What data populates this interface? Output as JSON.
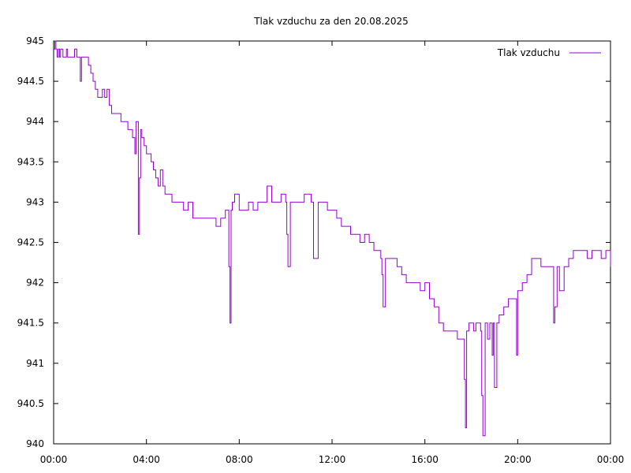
{
  "chart_data": {
    "type": "line",
    "title": "Tlak vzduchu za den 20.08.2025",
    "xlabel": "",
    "ylabel": "",
    "xlim": [
      0,
      24
    ],
    "ylim": [
      940,
      945
    ],
    "x_ticks": [
      {
        "value": 0,
        "label": "00:00"
      },
      {
        "value": 4,
        "label": "04:00"
      },
      {
        "value": 8,
        "label": "08:00"
      },
      {
        "value": 12,
        "label": "12:00"
      },
      {
        "value": 16,
        "label": "16:00"
      },
      {
        "value": 20,
        "label": "20:00"
      },
      {
        "value": 24,
        "label": "00:00"
      }
    ],
    "y_ticks": [
      {
        "value": 940,
        "label": "940"
      },
      {
        "value": 940.5,
        "label": "940.5"
      },
      {
        "value": 941,
        "label": "941"
      },
      {
        "value": 941.5,
        "label": "941.5"
      },
      {
        "value": 942,
        "label": "942"
      },
      {
        "value": 942.5,
        "label": "942.5"
      },
      {
        "value": 943,
        "label": "943"
      },
      {
        "value": 943.5,
        "label": "943.5"
      },
      {
        "value": 944,
        "label": "944"
      },
      {
        "value": 944.5,
        "label": "944.5"
      },
      {
        "value": 945,
        "label": "945"
      }
    ],
    "grid": false,
    "legend_position": "top-right",
    "series": [
      {
        "name": "Tlak vzduchu",
        "color": "#9400d3",
        "x": [
          0.0,
          0.05,
          0.1,
          0.15,
          0.2,
          0.25,
          0.3,
          0.4,
          0.5,
          0.55,
          0.6,
          0.65,
          0.7,
          0.8,
          0.9,
          1.0,
          1.1,
          1.15,
          1.2,
          1.3,
          1.4,
          1.5,
          1.6,
          1.7,
          1.8,
          1.9,
          2.0,
          2.1,
          2.2,
          2.3,
          2.4,
          2.5,
          2.6,
          2.7,
          2.8,
          2.9,
          3.0,
          3.1,
          3.2,
          3.3,
          3.4,
          3.5,
          3.55,
          3.6,
          3.65,
          3.7,
          3.75,
          3.8,
          3.9,
          4.0,
          4.1,
          4.2,
          4.3,
          4.4,
          4.5,
          4.6,
          4.7,
          4.8,
          4.9,
          5.0,
          5.1,
          5.2,
          5.4,
          5.6,
          5.8,
          6.0,
          6.2,
          6.4,
          6.6,
          6.8,
          7.0,
          7.2,
          7.4,
          7.5,
          7.55,
          7.6,
          7.65,
          7.7,
          7.8,
          8.0,
          8.2,
          8.4,
          8.6,
          8.8,
          9.0,
          9.2,
          9.4,
          9.6,
          9.8,
          10.0,
          10.05,
          10.1,
          10.2,
          10.4,
          10.6,
          10.8,
          11.0,
          11.05,
          11.1,
          11.2,
          11.4,
          11.6,
          11.8,
          12.0,
          12.2,
          12.4,
          12.6,
          12.8,
          13.0,
          13.2,
          13.4,
          13.6,
          13.8,
          14.0,
          14.1,
          14.15,
          14.2,
          14.3,
          14.4,
          14.6,
          14.8,
          15.0,
          15.2,
          15.4,
          15.6,
          15.8,
          16.0,
          16.2,
          16.4,
          16.6,
          16.8,
          17.0,
          17.2,
          17.4,
          17.6,
          17.7,
          17.75,
          17.8,
          17.9,
          18.0,
          18.1,
          18.2,
          18.3,
          18.4,
          18.45,
          18.5,
          18.6,
          18.7,
          18.8,
          18.9,
          18.95,
          19.0,
          19.1,
          19.2,
          19.4,
          19.6,
          19.8,
          19.9,
          19.95,
          20.0,
          20.2,
          20.4,
          20.6,
          20.8,
          21.0,
          21.2,
          21.4,
          21.5,
          21.55,
          21.6,
          21.7,
          21.8,
          22.0,
          22.2,
          22.4,
          22.6,
          22.8,
          23.0,
          23.2,
          23.4,
          23.6,
          23.8,
          24.0
        ],
        "y": [
          944.9,
          945.0,
          944.9,
          944.8,
          944.9,
          944.8,
          944.9,
          944.8,
          944.8,
          944.9,
          944.8,
          944.8,
          944.8,
          944.8,
          944.9,
          944.8,
          944.8,
          944.5,
          944.8,
          944.8,
          944.8,
          944.7,
          944.6,
          944.5,
          944.4,
          944.3,
          944.3,
          944.4,
          944.3,
          944.4,
          944.2,
          944.1,
          944.1,
          944.1,
          944.1,
          944.0,
          944.0,
          944.0,
          943.9,
          943.9,
          943.8,
          943.6,
          944.0,
          944.0,
          942.6,
          943.3,
          943.9,
          943.8,
          943.7,
          943.6,
          943.6,
          943.5,
          943.4,
          943.3,
          943.2,
          943.4,
          943.2,
          943.1,
          943.1,
          943.1,
          943.0,
          943.0,
          943.0,
          942.9,
          943.0,
          942.8,
          942.8,
          942.8,
          942.8,
          942.8,
          942.7,
          942.8,
          942.9,
          942.9,
          942.2,
          941.5,
          942.9,
          943.0,
          943.1,
          942.9,
          942.9,
          943.0,
          942.9,
          943.0,
          943.0,
          943.2,
          943.0,
          943.0,
          943.1,
          943.0,
          942.6,
          942.2,
          943.0,
          943.0,
          943.0,
          943.1,
          943.1,
          943.1,
          943.0,
          942.3,
          943.0,
          943.0,
          942.9,
          942.9,
          942.8,
          942.7,
          942.7,
          942.6,
          942.6,
          942.5,
          942.6,
          942.5,
          942.4,
          942.4,
          942.3,
          942.1,
          941.7,
          942.3,
          942.3,
          942.3,
          942.2,
          942.1,
          942.0,
          942.0,
          942.0,
          941.9,
          942.0,
          941.8,
          941.7,
          941.5,
          941.4,
          941.4,
          941.4,
          941.3,
          941.3,
          940.8,
          940.2,
          941.4,
          941.5,
          941.5,
          941.4,
          941.5,
          941.5,
          941.4,
          940.6,
          940.1,
          941.5,
          941.3,
          941.5,
          941.1,
          941.5,
          940.7,
          941.5,
          941.6,
          941.7,
          941.8,
          941.8,
          941.8,
          941.1,
          941.9,
          942.0,
          942.1,
          942.3,
          942.3,
          942.2,
          942.2,
          942.2,
          942.2,
          941.5,
          941.7,
          942.2,
          941.9,
          942.2,
          942.3,
          942.4,
          942.4,
          942.4,
          942.3,
          942.4,
          942.4,
          942.3,
          942.4,
          942.2
        ]
      }
    ]
  }
}
